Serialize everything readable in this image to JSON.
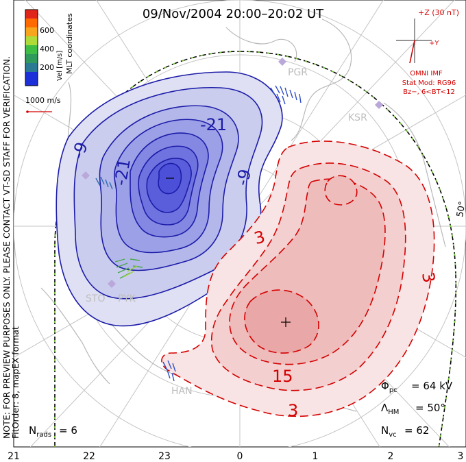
{
  "title": "09/Nov/2004 20:00–20:02 UT",
  "coordinate_label": "MLT coordinates",
  "note_line1": "NOTE: FOR PREVIEW PURPOSES ONLY. PLEASE CONTACT VT-SD STAFF FOR VERIFICATION.",
  "note_line2": "FitOrder: 8, mapEX format",
  "colorbar": {
    "label": "Vel [m/s]",
    "ticks": [
      "600",
      "400",
      "200"
    ],
    "colors": [
      "#e0261b",
      "#ff6a00",
      "#f6a51c",
      "#aeda3a",
      "#3fbd44",
      "#2f9a5c",
      "#2a7a93",
      "#1c2fd8"
    ]
  },
  "scale_vector": {
    "label": "1000 m/s"
  },
  "imf": {
    "z_label": "+Z (30 nT)",
    "y_label": "+Y",
    "source": "OMNI IMF",
    "model_line1": "Stat Mod: RG96",
    "model_line2": "Bz−, 6<BT<12"
  },
  "stations": [
    "PGR",
    "KSR",
    "STO",
    "PYK",
    "HAN"
  ],
  "contour_labels": {
    "negative": [
      "-21",
      "-9",
      "-21",
      "-9"
    ],
    "positive": [
      "3",
      "15",
      "3",
      "3"
    ]
  },
  "latitude_label": "50°",
  "stats": {
    "phi_pc": "64 kV",
    "lambda_hm": "50°",
    "n_vc": "62",
    "n_rads": "6"
  },
  "mlt_ticks": [
    "21",
    "22",
    "23",
    "0",
    "1",
    "2",
    "3"
  ]
}
